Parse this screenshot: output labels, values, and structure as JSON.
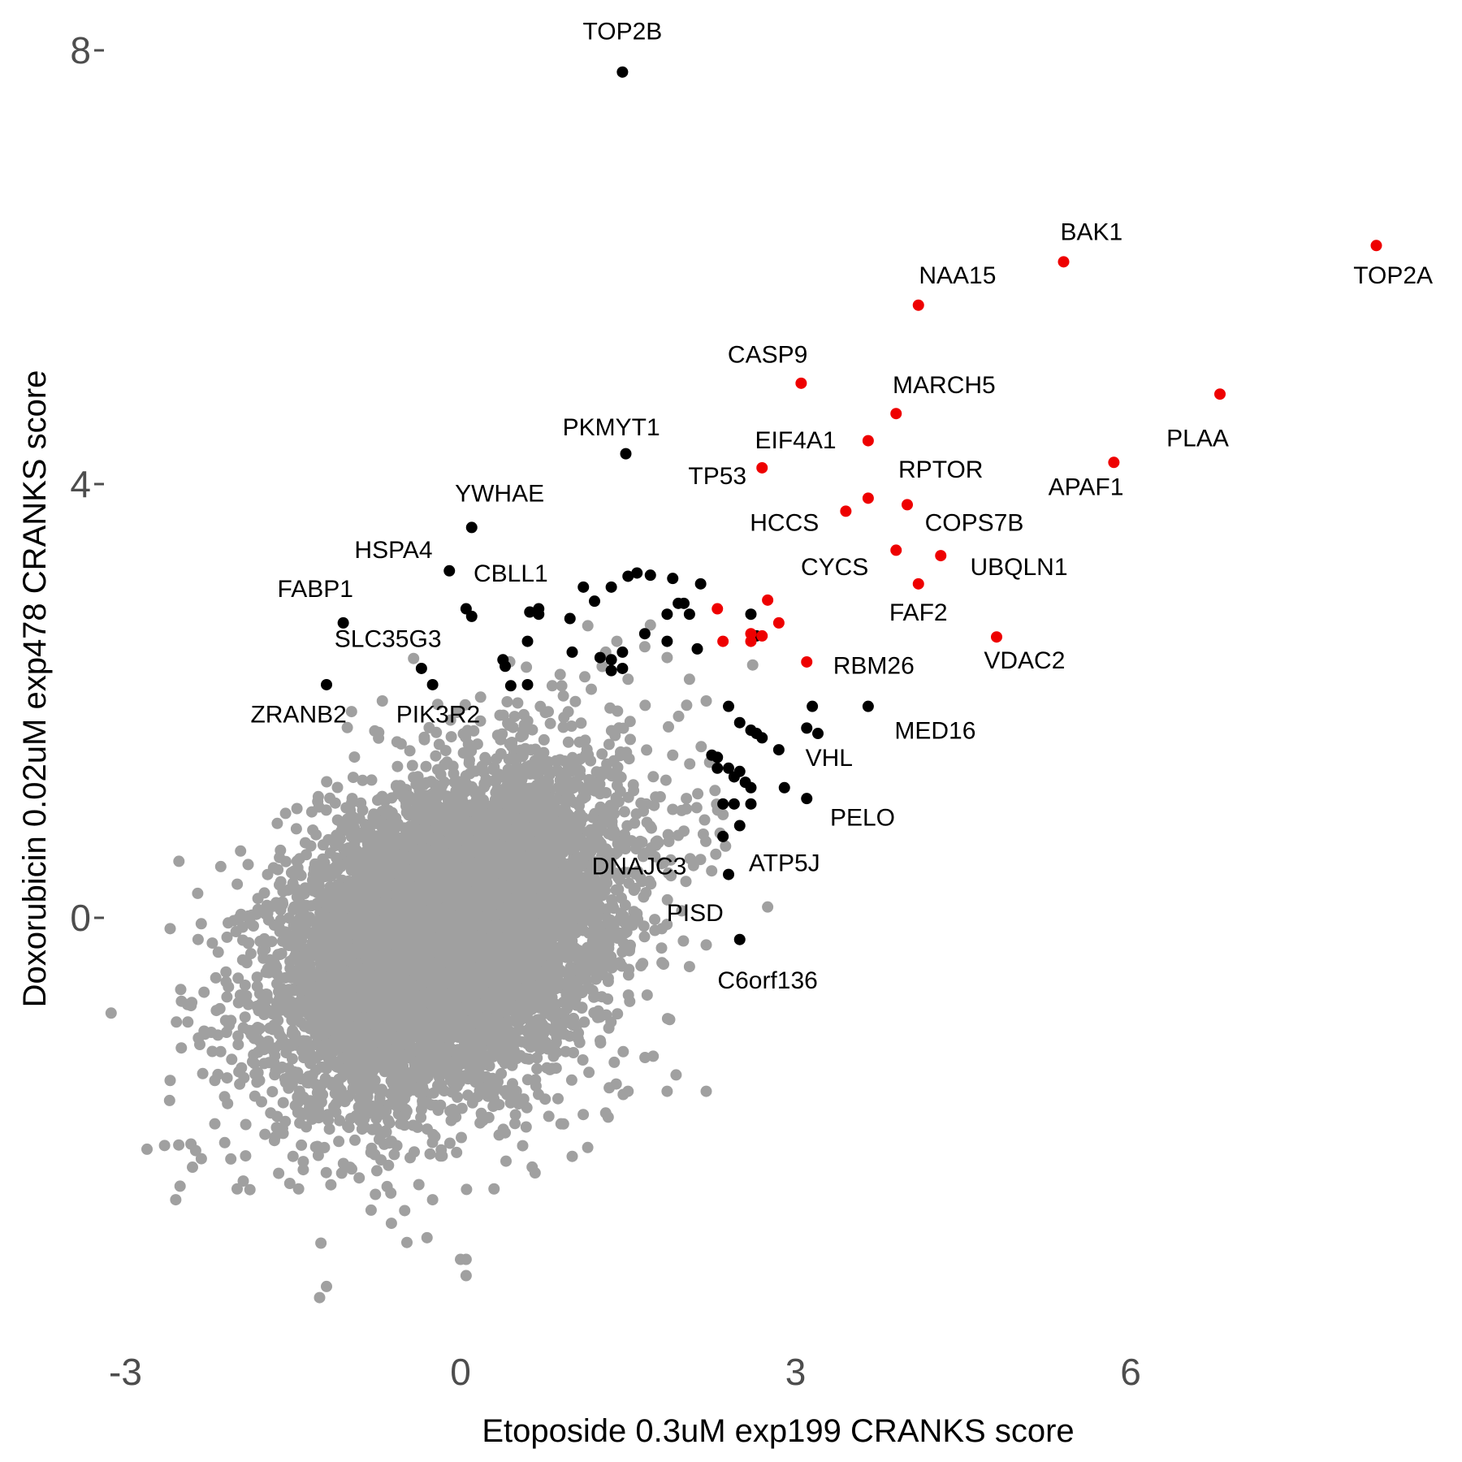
{
  "chart_data": {
    "type": "scatter",
    "title": "",
    "xlabel": "Etoposide 0.3uM exp199 CRANKS score",
    "ylabel": "Doxorubicin 0.02uM exp478 CRANKS score",
    "xlim": [
      -3.0,
      8.6
    ],
    "ylim": [
      -3.9,
      8.2
    ],
    "x_ticks": [
      -3,
      0,
      3,
      6
    ],
    "x_tick_labels": [
      "-3",
      "0",
      "3",
      "6"
    ],
    "y_ticks": [
      0,
      4,
      8
    ],
    "y_tick_labels": [
      "0",
      "4",
      "8"
    ],
    "grid": false,
    "legend": "none",
    "colors": {
      "background": "#a0a0a0",
      "hit": "#000000",
      "top_hit": "#ee0000",
      "tick_text": "#4d4d4d"
    },
    "background_cloud": {
      "count": 7800,
      "center": [
        -0.1,
        -0.15
      ],
      "sd": [
        0.75,
        0.75
      ],
      "correlation": 0.35
    },
    "background_outliers": [
      [
        -2.6,
        -0.1
      ],
      [
        -2.65,
        -2.1
      ],
      [
        -2.55,
        -2.6
      ],
      [
        -2.6,
        -1.5
      ],
      [
        -2.5,
        -1.2
      ],
      [
        -2.35,
        -0.2
      ],
      [
        -2.4,
        -2.3
      ],
      [
        -2.2,
        -1.9
      ],
      [
        -2.2,
        -1.5
      ],
      [
        -2.1,
        -0.5
      ],
      [
        -2.0,
        -2.5
      ],
      [
        -1.9,
        -0.8
      ],
      [
        -1.8,
        -1.5
      ],
      [
        -1.7,
        -1.8
      ],
      [
        -1.5,
        -2.2
      ],
      [
        -1.2,
        -3.4
      ],
      [
        -1.45,
        -2.5
      ],
      [
        -1.25,
        -3.0
      ],
      [
        -0.5,
        -2.7
      ],
      [
        -0.3,
        -2.95
      ],
      [
        -0.25,
        -2.6
      ],
      [
        0.0,
        -3.15
      ],
      [
        0.05,
        -3.15
      ],
      [
        0.05,
        -3.3
      ],
      [
        0.3,
        -2.5
      ],
      [
        0.5,
        -1.6
      ],
      [
        0.9,
        -1.9
      ],
      [
        1.0,
        -2.2
      ],
      [
        1.3,
        -1.8
      ],
      [
        1.5,
        -1.6
      ],
      [
        1.85,
        -1.6
      ],
      [
        2.2,
        -1.6
      ],
      [
        2.2,
        -0.25
      ],
      [
        2.05,
        -0.45
      ],
      [
        2.75,
        0.1
      ],
      [
        2.2,
        2.0
      ],
      [
        2.05,
        2.2
      ],
      [
        1.65,
        2.5
      ],
      [
        1.7,
        2.7
      ],
      [
        1.85,
        2.4
      ],
      [
        1.3,
        2.45
      ],
      [
        1.4,
        2.55
      ],
      [
        -0.7,
        2.0
      ],
      [
        1.5,
        2.2
      ],
      [
        1.9,
        1.5
      ],
      [
        1.9,
        1.0
      ],
      [
        2.0,
        0.8
      ],
      [
        1.8,
        0.5
      ]
    ],
    "hits": [
      [
        1.45,
        7.8
      ],
      [
        1.48,
        4.28
      ],
      [
        0.1,
        3.6
      ],
      [
        -0.1,
        3.2
      ],
      [
        0.05,
        2.85
      ],
      [
        0.1,
        2.78
      ],
      [
        -1.05,
        2.72
      ],
      [
        -0.35,
        2.3
      ],
      [
        -1.2,
        2.15
      ],
      [
        -0.25,
        2.15
      ],
      [
        0.38,
        2.38
      ],
      [
        0.4,
        2.32
      ],
      [
        0.45,
        2.14
      ],
      [
        0.6,
        2.15
      ],
      [
        0.62,
        2.82
      ],
      [
        0.7,
        2.85
      ],
      [
        0.7,
        2.8
      ],
      [
        0.6,
        2.55
      ],
      [
        0.98,
        2.76
      ],
      [
        1.1,
        3.05
      ],
      [
        1.2,
        2.92
      ],
      [
        1.35,
        3.05
      ],
      [
        1.5,
        3.15
      ],
      [
        1.58,
        3.18
      ],
      [
        1.7,
        3.16
      ],
      [
        1.9,
        3.13
      ],
      [
        2.15,
        3.08
      ],
      [
        1.65,
        2.62
      ],
      [
        1.0,
        2.45
      ],
      [
        1.25,
        2.4
      ],
      [
        1.35,
        2.38
      ],
      [
        1.45,
        2.45
      ],
      [
        1.35,
        2.28
      ],
      [
        1.45,
        2.3
      ],
      [
        1.85,
        2.55
      ],
      [
        1.85,
        2.8
      ],
      [
        1.95,
        2.9
      ],
      [
        2.05,
        2.8
      ],
      [
        2.12,
        2.48
      ],
      [
        2.0,
        2.9
      ],
      [
        2.6,
        2.8
      ],
      [
        2.65,
        2.6
      ],
      [
        2.4,
        1.95
      ],
      [
        2.5,
        1.8
      ],
      [
        2.6,
        1.73
      ],
      [
        2.65,
        1.7
      ],
      [
        2.7,
        1.66
      ],
      [
        2.85,
        1.55
      ],
      [
        2.25,
        1.5
      ],
      [
        2.3,
        1.48
      ],
      [
        2.3,
        1.38
      ],
      [
        2.4,
        1.38
      ],
      [
        2.5,
        1.35
      ],
      [
        2.45,
        1.3
      ],
      [
        2.55,
        1.25
      ],
      [
        2.6,
        1.2
      ],
      [
        2.35,
        1.05
      ],
      [
        2.45,
        1.05
      ],
      [
        2.6,
        1.05
      ],
      [
        2.9,
        1.2
      ],
      [
        3.1,
        1.75
      ],
      [
        3.15,
        1.95
      ],
      [
        3.2,
        1.7
      ],
      [
        3.1,
        1.1
      ],
      [
        3.65,
        1.95
      ],
      [
        2.35,
        0.75
      ],
      [
        2.5,
        0.85
      ],
      [
        2.4,
        0.4
      ],
      [
        2.5,
        -0.2
      ]
    ],
    "top_hits": [
      [
        8.2,
        6.2
      ],
      [
        5.4,
        6.05
      ],
      [
        4.1,
        5.65
      ],
      [
        3.05,
        4.93
      ],
      [
        3.9,
        4.65
      ],
      [
        6.8,
        4.83
      ],
      [
        3.65,
        4.4
      ],
      [
        2.7,
        4.15
      ],
      [
        5.85,
        4.2
      ],
      [
        3.45,
        3.75
      ],
      [
        3.65,
        3.87
      ],
      [
        4.0,
        3.81
      ],
      [
        3.9,
        3.39
      ],
      [
        4.3,
        3.34
      ],
      [
        4.1,
        3.08
      ],
      [
        4.8,
        2.59
      ],
      [
        2.3,
        2.85
      ],
      [
        2.75,
        2.93
      ],
      [
        2.85,
        2.72
      ],
      [
        2.7,
        2.6
      ],
      [
        2.35,
        2.55
      ],
      [
        2.6,
        2.62
      ],
      [
        2.6,
        2.55
      ],
      [
        3.1,
        2.36
      ]
    ],
    "labels": [
      {
        "text": "TOP2B",
        "x": 1.45,
        "y": 8.1,
        "anchor": "middle"
      },
      {
        "text": "BAK1",
        "x": 5.65,
        "y": 6.25,
        "anchor": "middle"
      },
      {
        "text": "NAA15",
        "x": 4.45,
        "y": 5.85,
        "anchor": "middle"
      },
      {
        "text": "TOP2A",
        "x": 8.35,
        "y": 5.85,
        "anchor": "middle"
      },
      {
        "text": "CASP9",
        "x": 2.75,
        "y": 5.12,
        "anchor": "middle"
      },
      {
        "text": "MARCH5",
        "x": 4.33,
        "y": 4.84,
        "anchor": "middle"
      },
      {
        "text": "PKMYT1",
        "x": 1.35,
        "y": 4.45,
        "anchor": "middle"
      },
      {
        "text": "EIF4A1",
        "x": 3.0,
        "y": 4.33,
        "anchor": "middle"
      },
      {
        "text": "PLAA",
        "x": 6.6,
        "y": 4.35,
        "anchor": "middle"
      },
      {
        "text": "TP53",
        "x": 2.3,
        "y": 4.0,
        "anchor": "middle"
      },
      {
        "text": "RPTOR",
        "x": 4.3,
        "y": 4.06,
        "anchor": "middle"
      },
      {
        "text": "APAF1",
        "x": 5.6,
        "y": 3.9,
        "anchor": "middle"
      },
      {
        "text": "YWHAE",
        "x": 0.35,
        "y": 3.84,
        "anchor": "middle"
      },
      {
        "text": "HCCS",
        "x": 2.9,
        "y": 3.57,
        "anchor": "middle"
      },
      {
        "text": "COPS7B",
        "x": 4.6,
        "y": 3.57,
        "anchor": "middle"
      },
      {
        "text": "HSPA4",
        "x": -0.6,
        "y": 3.32,
        "anchor": "middle"
      },
      {
        "text": "CYCS",
        "x": 3.35,
        "y": 3.16,
        "anchor": "middle"
      },
      {
        "text": "UBQLN1",
        "x": 5.0,
        "y": 3.16,
        "anchor": "middle"
      },
      {
        "text": "CBLL1",
        "x": 0.45,
        "y": 3.1,
        "anchor": "middle"
      },
      {
        "text": "FABP1",
        "x": -1.3,
        "y": 2.96,
        "anchor": "middle"
      },
      {
        "text": "FAF2",
        "x": 4.1,
        "y": 2.74,
        "anchor": "middle"
      },
      {
        "text": "SLC35G3",
        "x": -0.65,
        "y": 2.5,
        "anchor": "middle"
      },
      {
        "text": "VDAC2",
        "x": 5.05,
        "y": 2.3,
        "anchor": "middle"
      },
      {
        "text": "RBM26",
        "x": 3.7,
        "y": 2.25,
        "anchor": "middle"
      },
      {
        "text": "ZRANB2",
        "x": -1.45,
        "y": 1.8,
        "anchor": "middle"
      },
      {
        "text": "PIK3R2",
        "x": -0.2,
        "y": 1.8,
        "anchor": "middle"
      },
      {
        "text": "MED16",
        "x": 4.25,
        "y": 1.65,
        "anchor": "middle"
      },
      {
        "text": "VHL",
        "x": 3.3,
        "y": 1.4,
        "anchor": "middle"
      },
      {
        "text": "PELO",
        "x": 3.6,
        "y": 0.85,
        "anchor": "middle"
      },
      {
        "text": "DNAJC3",
        "x": 1.6,
        "y": 0.4,
        "anchor": "middle"
      },
      {
        "text": "ATP5J",
        "x": 2.9,
        "y": 0.43,
        "anchor": "middle"
      },
      {
        "text": "PISD",
        "x": 2.1,
        "y": -0.03,
        "anchor": "middle"
      },
      {
        "text": "C6orf136",
        "x": 2.75,
        "y": -0.65,
        "anchor": "middle"
      }
    ]
  }
}
